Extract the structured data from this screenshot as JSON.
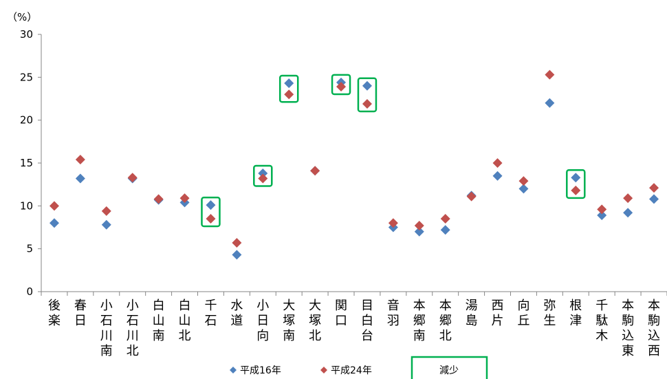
{
  "chart_data": {
    "type": "scatter",
    "y_unit_label": "（%）",
    "ylim": [
      0,
      30
    ],
    "y_ticks": [
      0,
      5,
      10,
      15,
      20,
      25,
      30
    ],
    "grid": false,
    "categories": [
      "後楽",
      "春日",
      "小石川南",
      "小石川北",
      "白山南",
      "白山北",
      "千石",
      "水道",
      "小日向",
      "大塚南",
      "大塚北",
      "関口",
      "目白台",
      "音羽",
      "本郷南",
      "本郷北",
      "湯島",
      "西片",
      "向丘",
      "弥生",
      "根津",
      "千駄木",
      "本駒込東",
      "本駒込西"
    ],
    "series": [
      {
        "name": "平成16年",
        "color": "#4f81bd",
        "values": [
          8.0,
          13.2,
          7.8,
          13.2,
          10.7,
          10.4,
          10.1,
          4.3,
          13.8,
          24.3,
          14.1,
          24.4,
          24.0,
          7.5,
          7.0,
          7.2,
          11.2,
          13.5,
          12.0,
          22.0,
          13.3,
          8.9,
          9.2,
          10.8
        ]
      },
      {
        "name": "平成24年",
        "color": "#c0504d",
        "values": [
          10.0,
          15.4,
          9.4,
          13.3,
          10.8,
          10.9,
          8.5,
          5.7,
          13.2,
          23.0,
          14.1,
          23.9,
          21.9,
          8.0,
          7.7,
          8.5,
          11.1,
          15.0,
          12.9,
          25.3,
          11.8,
          9.6,
          10.9,
          12.1
        ]
      }
    ],
    "highlighted_categories": [
      "千石",
      "小日向",
      "大塚南",
      "関口",
      "目白台",
      "根津"
    ],
    "highlight_color": "#00b050",
    "legend": {
      "placement": "bottom",
      "items": [
        {
          "label": "平成16年",
          "symbol": "diamond",
          "color": "#4f81bd"
        },
        {
          "label": "平成24年",
          "symbol": "diamond",
          "color": "#c0504d"
        },
        {
          "label": "減少",
          "symbol": "box",
          "color": "#00b050"
        }
      ]
    }
  }
}
